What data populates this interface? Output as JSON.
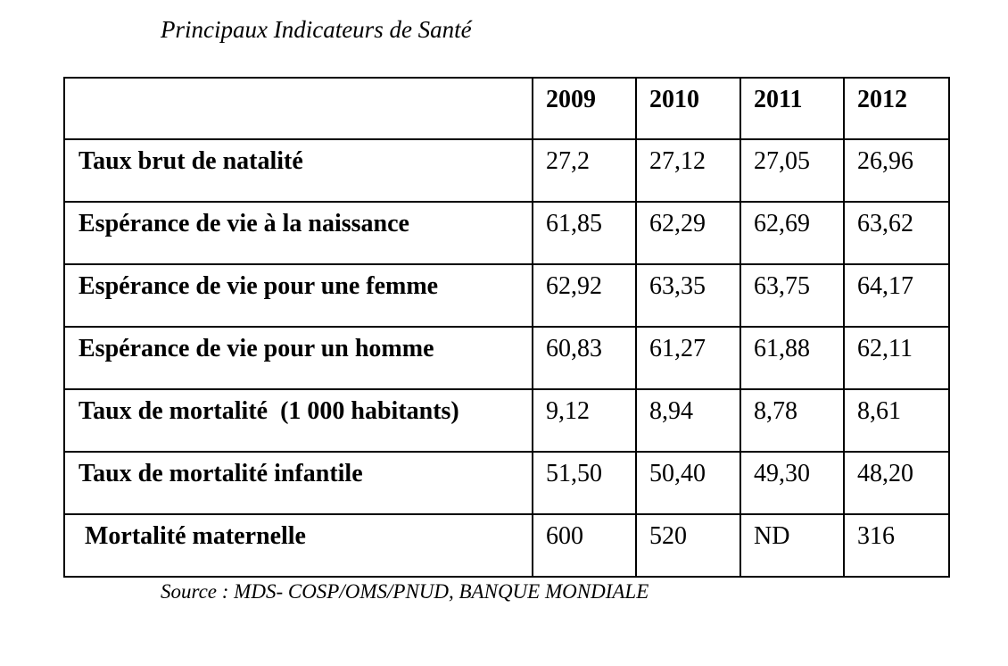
{
  "title": "Principaux Indicateurs de Santé",
  "table": {
    "years": [
      "2009",
      "2010",
      "2011",
      "2012"
    ],
    "rows": [
      {
        "label": "Taux brut de natalité",
        "values": [
          "27,2",
          "27,12",
          "27,05",
          "26,96"
        ]
      },
      {
        "label": "Espérance de vie à la naissance",
        "values": [
          "61,85",
          "62,29",
          "62,69",
          "63,62"
        ]
      },
      {
        "label": "Espérance de vie pour une femme",
        "values": [
          "62,92",
          "63,35",
          "63,75",
          "64,17"
        ]
      },
      {
        "label": "Espérance de vie pour un homme",
        "values": [
          "60,83",
          "61,27",
          "61,88",
          "62,11"
        ]
      },
      {
        "label": "Taux de mortalité  (1 000 habitants)",
        "values": [
          "9,12",
          "8,94",
          "8,78",
          "8,61"
        ]
      },
      {
        "label": "Taux de mortalité infantile",
        "values": [
          "51,50",
          "50,40",
          "49,30",
          "48,20"
        ]
      },
      {
        "label": "Mortalité maternelle",
        "values": [
          "600",
          "520",
          "ND",
          "316"
        ]
      }
    ]
  },
  "source": "Source : MDS- COSP/OMS/PNUD, BANQUE MONDIALE"
}
